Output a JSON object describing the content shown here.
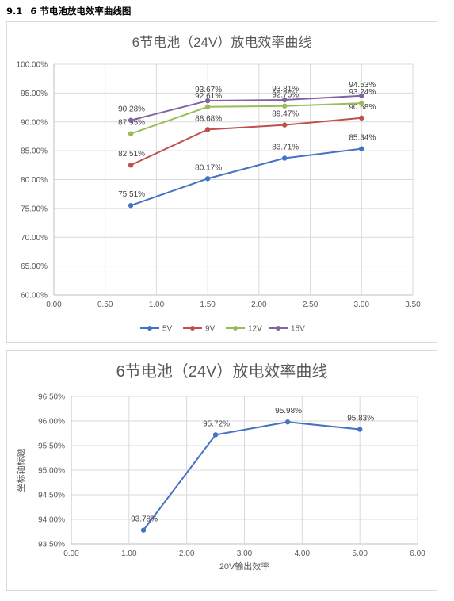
{
  "heading": {
    "number": "9.1",
    "text": "6 节电池放电效率曲线图"
  },
  "chart_data": [
    {
      "type": "scatter",
      "title": "6节电池（24V）放电效率曲线",
      "xlabel": "",
      "ylabel": "",
      "xlim": [
        0,
        3.5
      ],
      "ylim": [
        60,
        100
      ],
      "x_ticks": [
        "0.00",
        "0.50",
        "1.00",
        "1.50",
        "2.00",
        "2.50",
        "3.00",
        "3.50"
      ],
      "y_ticks": [
        "60.00%",
        "65.00%",
        "70.00%",
        "75.00%",
        "80.00%",
        "85.00%",
        "90.00%",
        "95.00%",
        "100.00%"
      ],
      "grid": true,
      "legend_position": "bottom",
      "series": [
        {
          "name": "5V",
          "color": "#4472c4",
          "points": [
            [
              0.75,
              75.51
            ],
            [
              1.5,
              80.17
            ],
            [
              2.25,
              83.71
            ],
            [
              3.0,
              85.34
            ]
          ],
          "labels": [
            "75.51%",
            "80.17%",
            "83.71%",
            "85.34%"
          ]
        },
        {
          "name": "9V",
          "color": "#c0504d",
          "points": [
            [
              0.75,
              82.51
            ],
            [
              1.5,
              88.68
            ],
            [
              2.25,
              89.47
            ],
            [
              3.0,
              90.68
            ]
          ],
          "labels": [
            "82.51%",
            "88.68%",
            "89.47%",
            "90.68%"
          ]
        },
        {
          "name": "12V",
          "color": "#9bbb59",
          "points": [
            [
              0.75,
              87.95
            ],
            [
              1.5,
              92.61
            ],
            [
              2.25,
              92.75
            ],
            [
              3.0,
              93.24
            ]
          ],
          "labels": [
            "87.95%",
            "92.61%",
            "92.75%",
            "93.24%"
          ]
        },
        {
          "name": "15V",
          "color": "#8064a2",
          "points": [
            [
              0.75,
              90.28
            ],
            [
              1.5,
              93.67
            ],
            [
              2.25,
              93.81
            ],
            [
              3.0,
              94.53
            ]
          ],
          "labels": [
            "90.28%",
            "93.67%",
            "93.81%",
            "94.53%"
          ]
        }
      ]
    },
    {
      "type": "scatter",
      "title": "6节电池（24V）放电效率曲线",
      "xlabel": "20V输出效率",
      "ylabel": "坐标轴标题",
      "xlim": [
        0,
        6
      ],
      "ylim": [
        93.5,
        96.5
      ],
      "x_ticks": [
        "0.00",
        "1.00",
        "2.00",
        "3.00",
        "4.00",
        "5.00",
        "6.00"
      ],
      "y_ticks": [
        "93.50%",
        "94.00%",
        "94.50%",
        "95.00%",
        "95.50%",
        "96.00%",
        "96.50%"
      ],
      "grid": true,
      "legend_position": "none",
      "series": [
        {
          "name": "",
          "color": "#4472c4",
          "points": [
            [
              1.25,
              93.78
            ],
            [
              2.5,
              95.72
            ],
            [
              3.75,
              95.98
            ],
            [
              5.0,
              95.83
            ]
          ],
          "labels": [
            "93.78%",
            "95.72%",
            "95.98%",
            "95.83%"
          ]
        }
      ]
    }
  ]
}
